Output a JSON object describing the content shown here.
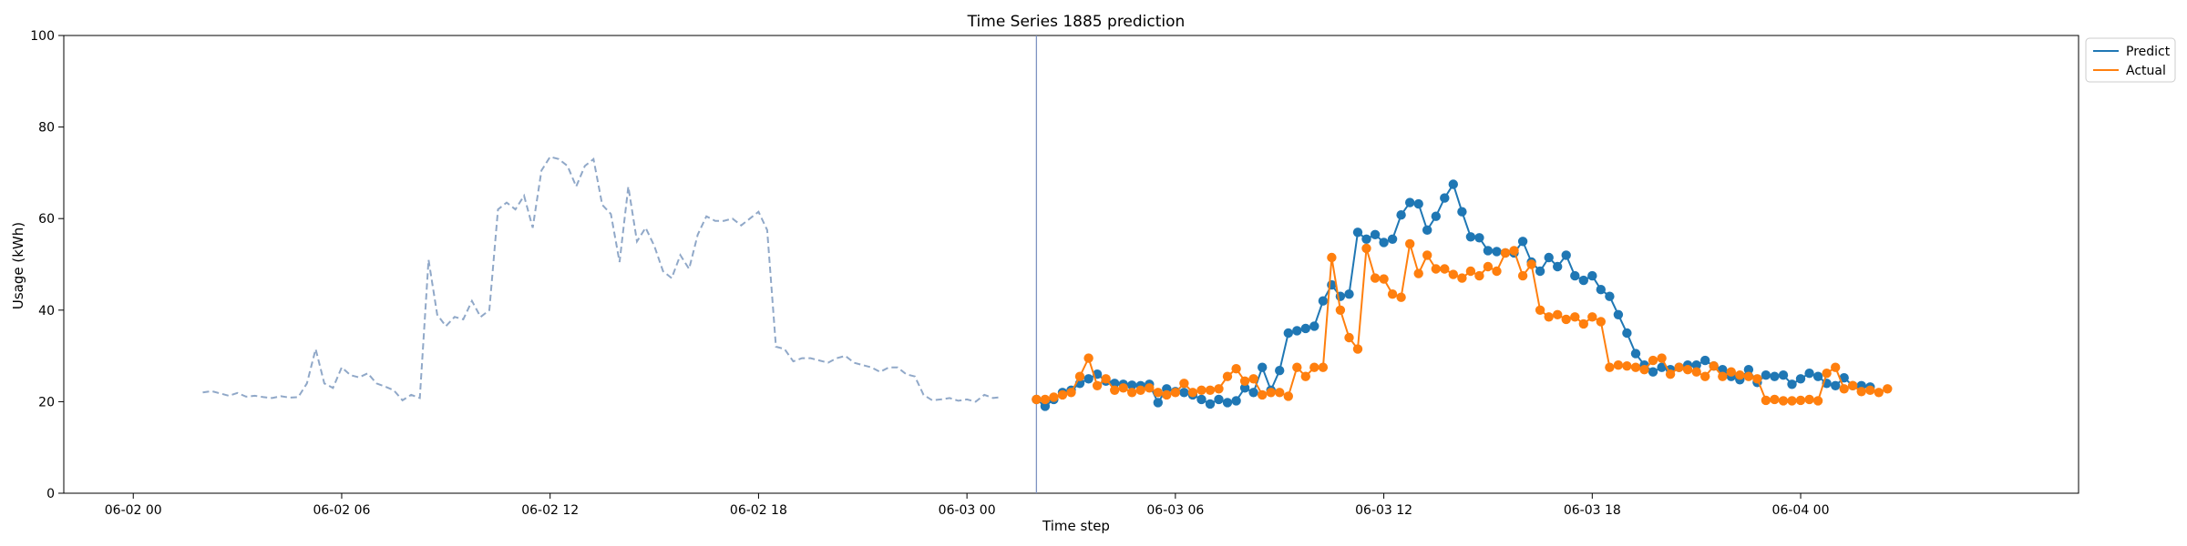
{
  "chart_data": {
    "type": "line",
    "title": "Time Series 1885 prediction",
    "xlabel": "Time step",
    "ylabel": "Usage (kWh)",
    "ylim": [
      0,
      100
    ],
    "y_ticks": [
      0,
      20,
      40,
      60,
      80,
      100
    ],
    "x_range_hours": [
      -2,
      56
    ],
    "x_ticks": [
      {
        "hour": 0,
        "label": "06-02 00"
      },
      {
        "hour": 6,
        "label": "06-02 06"
      },
      {
        "hour": 12,
        "label": "06-02 12"
      },
      {
        "hour": 18,
        "label": "06-02 18"
      },
      {
        "hour": 24,
        "label": "06-03 00"
      },
      {
        "hour": 30,
        "label": "06-03 06"
      },
      {
        "hour": 36,
        "label": "06-03 12"
      },
      {
        "hour": 42,
        "label": "06-03 18"
      },
      {
        "hour": 48,
        "label": "06-04 00"
      }
    ],
    "forecast_start_hour": 26,
    "legend_position": "outside-top-right",
    "grid": false,
    "history": {
      "color": "#90a8c8",
      "start_hour": 2,
      "step_hours": 0.25,
      "values": [
        22,
        22.3,
        21.8,
        21.3,
        21.9,
        21.1,
        21.3,
        21.0,
        20.8,
        21.2,
        20.9,
        21.0,
        24.0,
        31.5,
        24.0,
        23.0,
        27.5,
        25.8,
        25.3,
        26.2,
        24.0,
        23.3,
        22.5,
        20.3,
        21.5,
        20.8,
        51.0,
        39.0,
        36.5,
        38.5,
        38.0,
        42.0,
        38.5,
        40.0,
        62.0,
        63.5,
        62.0,
        65.0,
        58.0,
        70.5,
        73.5,
        73.0,
        71.5,
        67.0,
        71.5,
        73.0,
        63.0,
        61.0,
        50.5,
        67.0,
        55.0,
        58.0,
        54.0,
        48.5,
        47.0,
        52.0,
        49.0,
        56.5,
        60.5,
        59.5,
        59.5,
        60.0,
        58.5,
        60.0,
        61.5,
        57.5,
        32.0,
        31.5,
        28.8,
        29.5,
        29.5,
        29.0,
        28.5,
        29.5,
        30.0,
        28.5,
        28.0,
        27.5,
        26.5,
        27.5,
        27.5,
        26.0,
        25.5,
        21.5,
        20.3,
        20.5,
        20.8,
        20.2,
        20.5,
        20.0,
        21.5,
        20.8,
        21.0
      ]
    },
    "series": [
      {
        "name": "Predict",
        "color": "#1f77b4",
        "start_hour": 26,
        "step_hours": 0.25,
        "values": [
          20.5,
          19.0,
          20.5,
          22.0,
          22.5,
          24.0,
          25.0,
          26.0,
          24.5,
          24.0,
          23.8,
          23.6,
          23.5,
          23.8,
          19.8,
          22.8,
          22.2,
          22.0,
          21.5,
          20.5,
          19.5,
          20.5,
          19.8,
          20.2,
          23.0,
          22.0,
          27.5,
          22.5,
          26.8,
          35.0,
          35.5,
          36.0,
          36.5,
          42.0,
          45.5,
          43.0,
          43.5,
          57.0,
          55.5,
          56.5,
          54.8,
          55.5,
          60.8,
          63.5,
          63.2,
          57.5,
          60.5,
          64.5,
          67.5,
          61.5,
          56.0,
          55.8,
          53.0,
          52.8,
          52.5,
          52.5,
          55.0,
          50.5,
          48.5,
          51.5,
          49.5,
          52.0,
          47.5,
          46.5,
          47.5,
          44.5,
          43.0,
          39.0,
          35.0,
          30.5,
          28.0,
          26.5,
          27.5,
          27.0,
          27.5,
          28.0,
          28.0,
          29.0,
          27.8,
          27.0,
          25.5,
          24.8,
          27.0,
          24.2,
          25.8,
          25.5,
          25.8,
          23.8,
          25.0,
          26.2,
          25.5,
          24.0,
          23.5,
          25.2,
          23.5,
          23.5,
          23.2
        ]
      },
      {
        "name": "Actual",
        "color": "#ff7f0e",
        "start_hour": 26,
        "step_hours": 0.25,
        "values": [
          20.5,
          20.5,
          21.0,
          21.5,
          22.0,
          25.5,
          29.5,
          23.5,
          25.0,
          22.5,
          23.0,
          22.0,
          22.5,
          23.0,
          22.0,
          21.5,
          22.0,
          24.0,
          22.0,
          22.5,
          22.5,
          22.8,
          25.5,
          27.2,
          24.5,
          25.0,
          21.5,
          22.0,
          22.0,
          21.2,
          27.5,
          25.5,
          27.5,
          27.5,
          51.5,
          40.0,
          34.0,
          31.5,
          53.5,
          47.0,
          46.8,
          43.5,
          42.8,
          54.5,
          48.0,
          52.0,
          49.0,
          49.0,
          47.8,
          47.0,
          48.5,
          47.5,
          49.5,
          48.5,
          52.5,
          53.0,
          47.5,
          50.0,
          40.0,
          38.5,
          39.0,
          38.0,
          38.5,
          37.0,
          38.5,
          37.5,
          27.5,
          28.0,
          27.8,
          27.5,
          27.0,
          29.0,
          29.5,
          26.0,
          27.5,
          27.0,
          26.5,
          25.5,
          27.8,
          25.5,
          26.5,
          25.8,
          25.5,
          25.0,
          20.3,
          20.5,
          20.2,
          20.2,
          20.3,
          20.5,
          20.2,
          26.2,
          27.5,
          22.8,
          23.5,
          22.2,
          22.5,
          22.0,
          22.8
        ]
      }
    ]
  }
}
